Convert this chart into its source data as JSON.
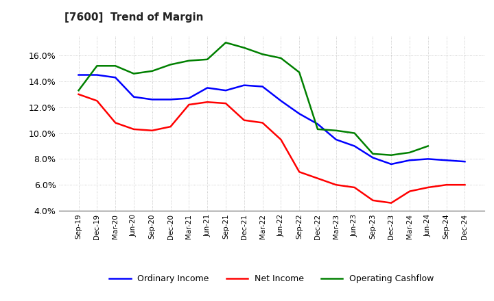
{
  "title": "[7600]  Trend of Margin",
  "labels": [
    "Sep-19",
    "Dec-19",
    "Mar-20",
    "Jun-20",
    "Sep-20",
    "Dec-20",
    "Mar-21",
    "Jun-21",
    "Sep-21",
    "Dec-21",
    "Mar-22",
    "Jun-22",
    "Sep-22",
    "Dec-22",
    "Mar-23",
    "Jun-23",
    "Sep-23",
    "Dec-23",
    "Mar-24",
    "Jun-24",
    "Sep-24",
    "Dec-24"
  ],
  "ordinary_income": [
    14.5,
    14.5,
    14.3,
    12.8,
    12.6,
    12.6,
    12.7,
    13.5,
    13.3,
    13.7,
    13.6,
    12.5,
    11.5,
    10.7,
    9.5,
    9.0,
    8.1,
    7.6,
    7.9,
    8.0,
    7.9,
    7.8
  ],
  "net_income": [
    13.0,
    12.5,
    10.8,
    10.3,
    10.2,
    10.5,
    12.2,
    12.4,
    12.3,
    11.0,
    10.8,
    9.5,
    7.0,
    6.5,
    6.0,
    5.8,
    4.8,
    4.6,
    5.5,
    5.8,
    6.0,
    6.0
  ],
  "operating_cashflow": [
    13.3,
    15.2,
    15.2,
    14.6,
    14.8,
    15.3,
    15.6,
    15.7,
    17.0,
    16.6,
    16.1,
    15.8,
    14.7,
    10.3,
    10.2,
    10.0,
    8.4,
    8.3,
    8.5,
    9.0,
    null,
    null
  ],
  "ylim": [
    4.0,
    17.5
  ],
  "yticks": [
    4.0,
    6.0,
    8.0,
    10.0,
    12.0,
    14.0,
    16.0
  ],
  "line_colors": {
    "ordinary_income": "#0000FF",
    "net_income": "#FF0000",
    "operating_cashflow": "#008000"
  },
  "line_width": 1.8,
  "legend_labels": [
    "Ordinary Income",
    "Net Income",
    "Operating Cashflow"
  ],
  "bg_color": "#FFFFFF",
  "grid_color": "#AAAAAA"
}
